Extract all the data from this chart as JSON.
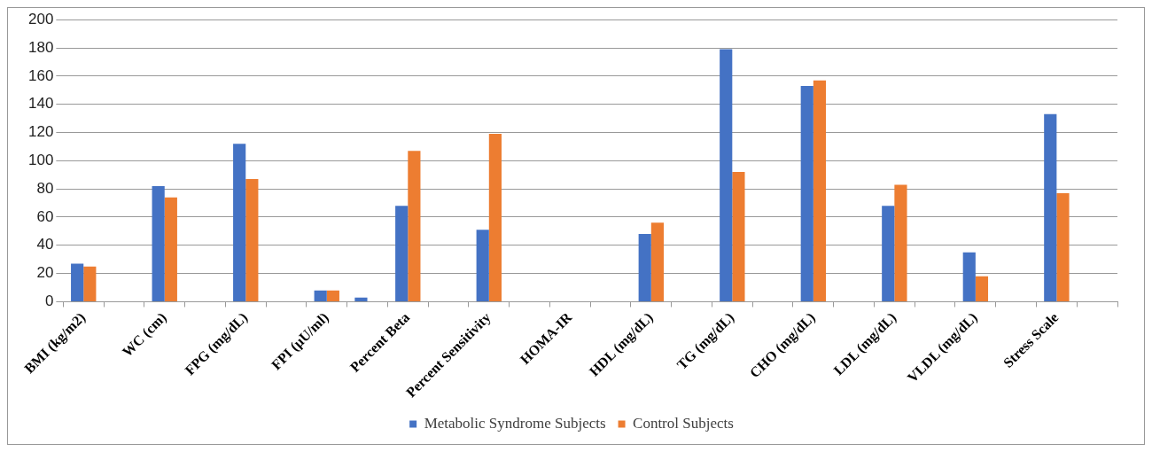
{
  "chart_data": {
    "type": "bar",
    "categories": [
      "BMI (kg/m2)",
      null,
      "WC (cm)",
      null,
      "FPG (mg/dL)",
      null,
      "FPI (µU/ml)",
      null,
      "Percent Beta",
      null,
      "Percent Sensitivity",
      null,
      "HOMA-IR",
      null,
      "HDL (mg/dL)",
      null,
      "TG (mg/dL)",
      null,
      "CHO (mg/dL)",
      null,
      "LDL (mg/dL)",
      null,
      "VLDL (mg/dL)",
      null,
      "Stress Scale",
      null
    ],
    "series": [
      {
        "name": "Metabolic Syndrome Subjects",
        "color": "#4472c4",
        "values": [
          27,
          null,
          82,
          null,
          112,
          null,
          8,
          3,
          68,
          null,
          51,
          null,
          null,
          null,
          48,
          null,
          179,
          null,
          153,
          null,
          68,
          null,
          35,
          null,
          133,
          null
        ]
      },
      {
        "name": "Control Subjects",
        "color": "#ed7d31",
        "values": [
          25,
          null,
          74,
          null,
          87,
          null,
          8,
          null,
          107,
          null,
          119,
          null,
          null,
          null,
          56,
          null,
          92,
          null,
          157,
          null,
          83,
          null,
          18,
          null,
          77,
          null
        ]
      }
    ],
    "ylim": [
      0,
      200
    ],
    "yticks": [
      0,
      20,
      40,
      60,
      80,
      100,
      120,
      140,
      160,
      180,
      200
    ],
    "grid": "y",
    "legend": "bottom"
  }
}
